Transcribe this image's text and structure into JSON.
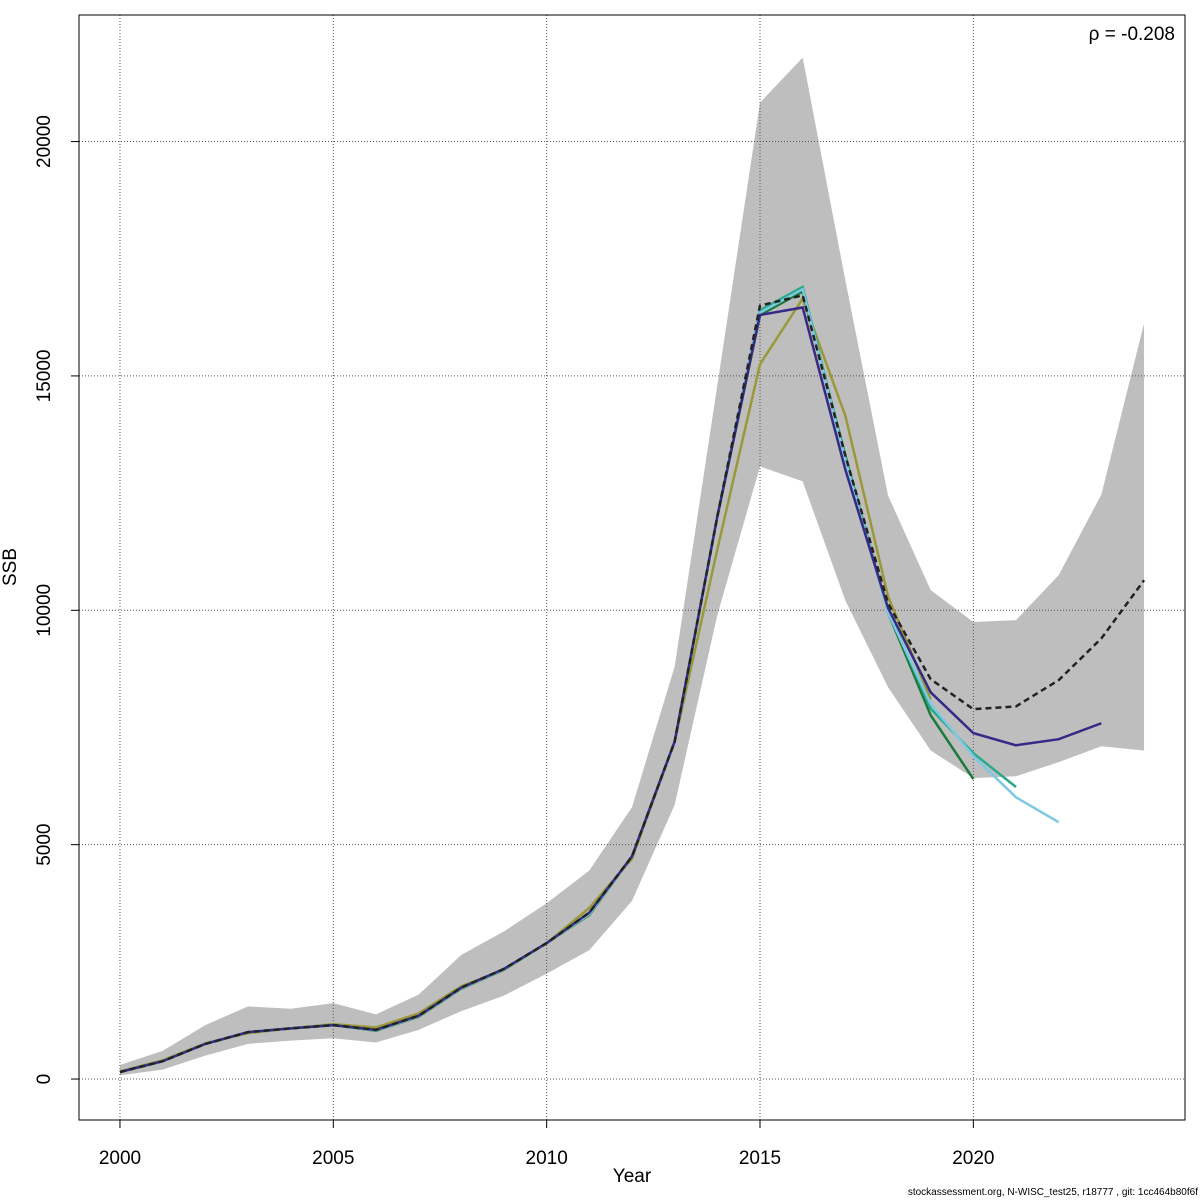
{
  "chart_data": {
    "type": "line",
    "x_label": "Year",
    "y_label": "SSB",
    "annotation": "ρ = -0.208",
    "footer": "stockassessment.org, N-WISC_test25, r18777 , git: 1cc464b80f6f",
    "x": [
      2000,
      2001,
      2002,
      2003,
      2004,
      2005,
      2006,
      2007,
      2008,
      2009,
      2010,
      2011,
      2012,
      2013,
      2014,
      2015,
      2016,
      2017,
      2018,
      2019,
      2020,
      2021,
      2022,
      2023,
      2024
    ],
    "xlim": [
      1999.04,
      2024.96
    ],
    "xticks": [
      2000,
      2005,
      2010,
      2015,
      2020
    ],
    "ylim": [
      -874,
      22700
    ],
    "yticks": [
      0,
      5000,
      10000,
      15000,
      20000
    ],
    "grid": true,
    "band": {
      "color": "#bebebe",
      "upper": [
        300,
        600,
        1150,
        1550,
        1500,
        1620,
        1380,
        1800,
        2650,
        3150,
        3750,
        4450,
        5800,
        8800,
        14800,
        20830,
        21790,
        17040,
        12450,
        10430,
        9750,
        9790,
        10750,
        12470,
        16120
      ],
      "lower": [
        80,
        200,
        500,
        750,
        820,
        870,
        780,
        1050,
        1450,
        1780,
        2250,
        2750,
        3800,
        5850,
        9900,
        13070,
        12750,
        10210,
        8360,
        7010,
        6420,
        6460,
        6760,
        7100,
        7010
      ]
    },
    "series": [
      {
        "color": "#99993a",
        "dashed": false,
        "values": [
          160,
          400,
          760,
          980,
          1080,
          1170,
          1100,
          1400,
          1980,
          2330,
          2900,
          3650,
          4700,
          7200,
          11300,
          15250,
          16650,
          14150,
          10300,
          8100,
          null,
          null,
          null,
          null,
          null
        ]
      },
      {
        "color": "#1a7a3a",
        "dashed": false,
        "values": [
          150,
          380,
          750,
          1000,
          1080,
          1150,
          1030,
          1330,
          1930,
          2330,
          2900,
          3500,
          4750,
          7200,
          12000,
          16300,
          16800,
          13300,
          9950,
          7760,
          6400,
          null,
          null,
          null,
          null
        ]
      },
      {
        "color": "#2aa98a",
        "dashed": false,
        "values": [
          150,
          380,
          750,
          1000,
          1080,
          1150,
          1040,
          1340,
          1940,
          2340,
          2900,
          3520,
          4750,
          7200,
          12000,
          16400,
          16900,
          13250,
          10000,
          7900,
          6950,
          6230,
          null,
          null,
          null
        ]
      },
      {
        "color": "#7ec8e3",
        "dashed": false,
        "values": [
          150,
          380,
          750,
          1000,
          1080,
          1150,
          1040,
          1340,
          1940,
          2340,
          2900,
          3520,
          4750,
          7200,
          12000,
          16350,
          16850,
          13200,
          9950,
          8000,
          6890,
          6010,
          5480,
          null,
          null
        ]
      },
      {
        "color": "#352a87",
        "dashed": false,
        "values": [
          150,
          380,
          750,
          1000,
          1080,
          1150,
          1050,
          1350,
          1950,
          2350,
          2900,
          3550,
          4750,
          7200,
          12000,
          16300,
          16460,
          13000,
          10050,
          8250,
          7380,
          7120,
          7250,
          7590,
          null
        ]
      },
      {
        "color": "#222222",
        "dashed": true,
        "values": [
          150,
          380,
          750,
          1000,
          1080,
          1150,
          1050,
          1350,
          1950,
          2350,
          2900,
          3550,
          4750,
          7200,
          12000,
          16500,
          16720,
          13300,
          10150,
          8530,
          7890,
          7950,
          8510,
          9400,
          10640
        ]
      }
    ]
  }
}
